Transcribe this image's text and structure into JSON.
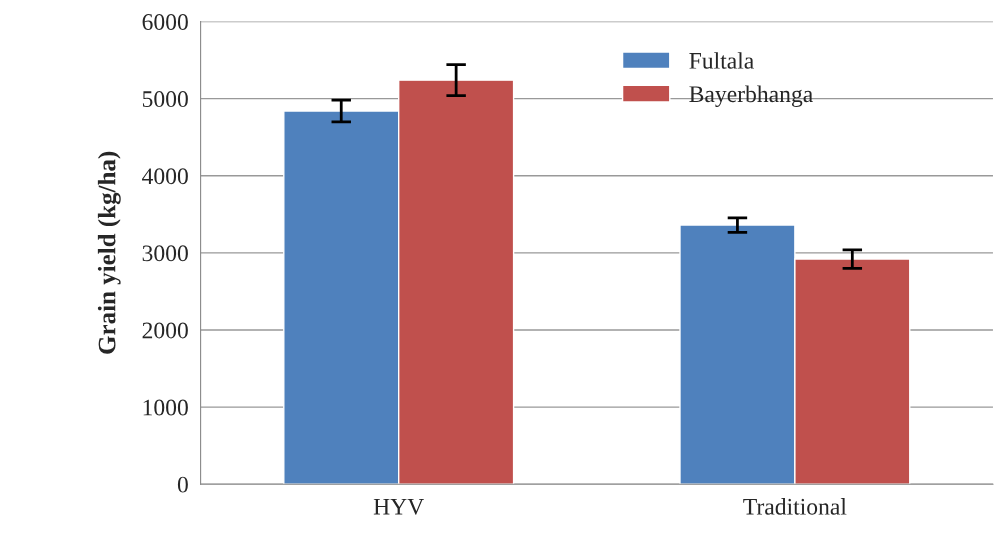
{
  "chart_data": {
    "type": "bar",
    "ylabel": "Grain yield (kg/ha)",
    "categories": [
      "HYV",
      "Traditional"
    ],
    "series": [
      {
        "name": "Fultala",
        "color": "#4f81bd",
        "values": [
          4840,
          3360
        ],
        "errors": [
          140,
          95
        ]
      },
      {
        "name": "Bayerbhanga",
        "color": "#c0504d",
        "values": [
          5240,
          2920
        ],
        "errors": [
          200,
          120
        ]
      }
    ],
    "ylim": [
      0,
      6000
    ],
    "yticks": [
      0,
      1000,
      2000,
      3000,
      4000,
      5000,
      6000
    ],
    "grid": "y",
    "legend": "top right"
  }
}
